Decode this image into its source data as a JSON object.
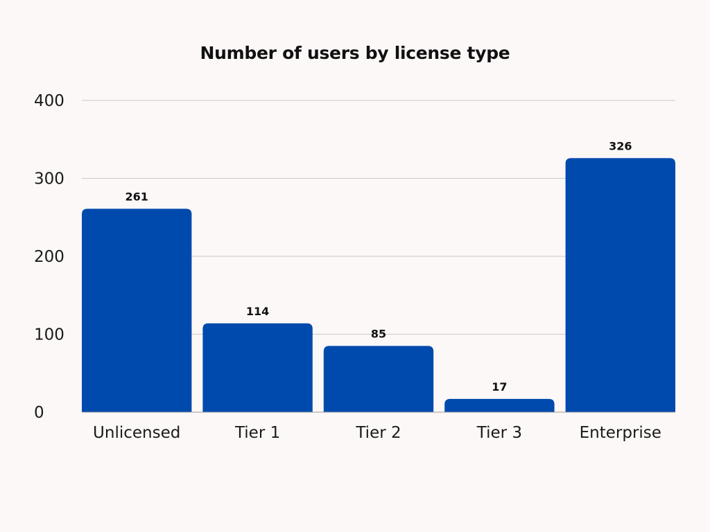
{
  "chart_data": {
    "type": "bar",
    "title": "Number of users by license type",
    "categories": [
      "Unlicensed",
      "Tier 1",
      "Tier 2",
      "Tier 3",
      "Enterprise"
    ],
    "values": [
      261,
      114,
      85,
      17,
      326
    ],
    "data_labels": [
      "261",
      "114",
      "85",
      "17",
      "326"
    ],
    "xlabel": "",
    "ylabel": "",
    "ylim": [
      0,
      400
    ],
    "yticks": [
      0,
      100,
      200,
      300,
      400
    ],
    "ytick_labels": [
      "0",
      "100",
      "200",
      "300",
      "400"
    ],
    "grid": true,
    "legend": false,
    "bar_color": "#004aad",
    "grid_color": "#c8c8c8",
    "background_color": "#fcf8f7"
  }
}
